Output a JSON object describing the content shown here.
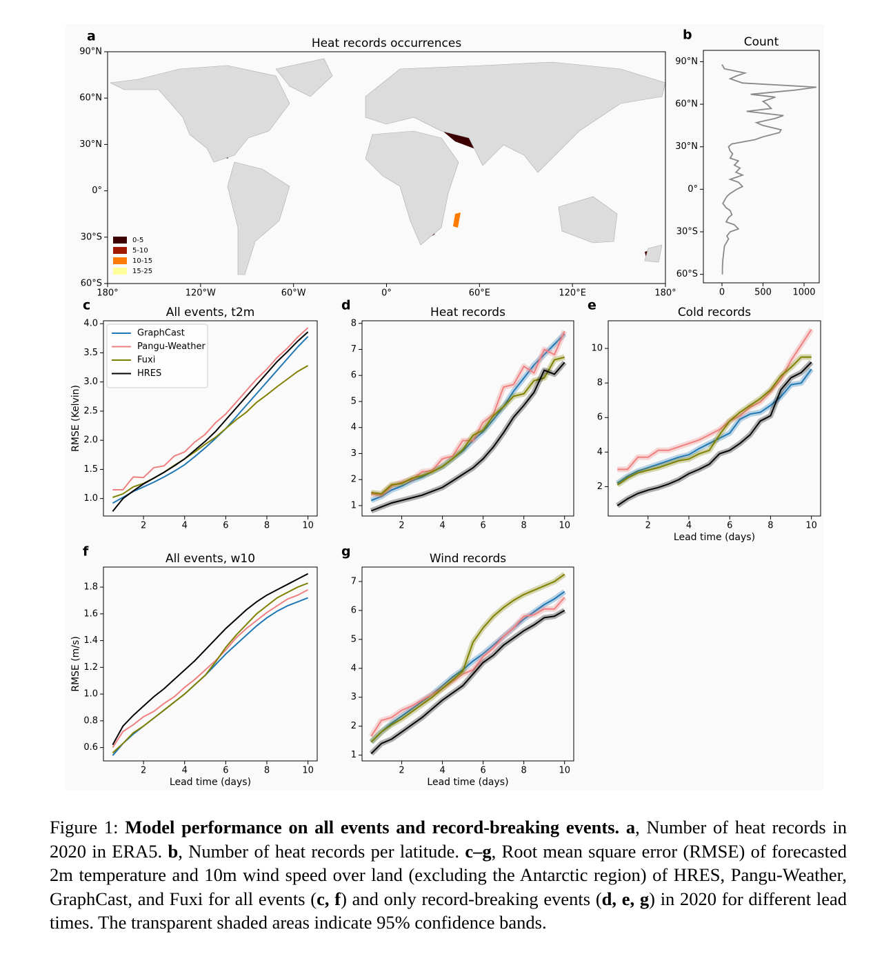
{
  "chart_data": [
    {
      "type": "map",
      "panel": "a",
      "title": "Heat records occurrences",
      "xlim": [
        -180,
        180
      ],
      "ylim": [
        -60,
        90
      ],
      "xticks": [
        {
          "value": -180,
          "label": "180°"
        },
        {
          "value": -120,
          "label": "120°W"
        },
        {
          "value": -60,
          "label": "60°W"
        },
        {
          "value": 0,
          "label": "0°"
        },
        {
          "value": 60,
          "label": "60°E"
        },
        {
          "value": 120,
          "label": "120°E"
        },
        {
          "value": 180,
          "label": "180°"
        }
      ],
      "yticks": [
        {
          "value": 90,
          "label": "90°N"
        },
        {
          "value": 60,
          "label": "60°N"
        },
        {
          "value": 30,
          "label": "30°N"
        },
        {
          "value": 0,
          "label": "0°"
        },
        {
          "value": -30,
          "label": "30°S"
        },
        {
          "value": -60,
          "label": "60°S"
        }
      ],
      "legend": "lower left",
      "legend_entries": [
        {
          "label": "0-5",
          "color": "#3d0000"
        },
        {
          "label": "5-10",
          "color": "#a01800"
        },
        {
          "label": "10-15",
          "color": "#ff7a00"
        },
        {
          "label": "15-25",
          "color": "#ffff99"
        }
      ]
    },
    {
      "type": "line",
      "orientation": "horizontal",
      "panel": "b",
      "title": "Count",
      "y": [
        88,
        85,
        82,
        80,
        78,
        75,
        72,
        70,
        67,
        65,
        62,
        60,
        57,
        55,
        52,
        50,
        47,
        45,
        42,
        40,
        37,
        35,
        32,
        30,
        27,
        25,
        22,
        20,
        17,
        15,
        12,
        10,
        7,
        5,
        2,
        0,
        -3,
        -5,
        -8,
        -10,
        -13,
        -15,
        -18,
        -20,
        -23,
        -25,
        -28,
        -30,
        -33,
        -35,
        -38,
        -40,
        -45,
        -50,
        -55,
        -60
      ],
      "values": [
        0,
        30,
        280,
        180,
        100,
        250,
        1150,
        900,
        350,
        650,
        500,
        550,
        600,
        300,
        750,
        650,
        420,
        500,
        720,
        700,
        500,
        400,
        120,
        80,
        100,
        130,
        100,
        200,
        150,
        220,
        170,
        250,
        100,
        200,
        250,
        180,
        100,
        60,
        30,
        10,
        50,
        100,
        120,
        80,
        50,
        150,
        200,
        100,
        60,
        80,
        50,
        30,
        20,
        10,
        5,
        5
      ],
      "color": "#888888",
      "xlim": [
        -227,
        1185
      ],
      "xticks": [
        0,
        500,
        1000
      ],
      "ylim": [
        -66,
        98
      ],
      "yticks": [
        {
          "value": 90,
          "label": "90°N"
        },
        {
          "value": 60,
          "label": "60°N"
        },
        {
          "value": 30,
          "label": "30°N"
        },
        {
          "value": 0,
          "label": "0°"
        },
        {
          "value": -30,
          "label": "30°S"
        },
        {
          "value": -60,
          "label": "60°S"
        }
      ]
    },
    {
      "type": "line",
      "panel": "c",
      "title": "All events, t2m",
      "ylabel": "RMSE (Kelvin)",
      "legend": "upper left",
      "bands": false,
      "x": [
        0.5,
        1,
        1.5,
        2,
        2.5,
        3,
        3.5,
        4,
        4.5,
        5,
        5.5,
        6,
        6.5,
        7,
        7.5,
        8,
        8.5,
        9,
        9.5,
        10
      ],
      "xlim": [
        0.05,
        10.45
      ],
      "xticks": [
        2,
        4,
        6,
        8,
        10
      ],
      "ylim": [
        0.7,
        4.05
      ],
      "yticks": [
        {
          "value": 1,
          "label": "1.0"
        },
        1.5,
        {
          "value": 2,
          "label": "2.0"
        },
        2.5,
        {
          "value": 3,
          "label": "3.0"
        },
        3.5,
        {
          "value": 4,
          "label": "4.0"
        }
      ],
      "series": [
        {
          "name": "GraphCast",
          "color": "#1f77b4",
          "values": [
            0.92,
            1.02,
            1.12,
            1.2,
            1.28,
            1.37,
            1.47,
            1.58,
            1.72,
            1.87,
            2.03,
            2.2,
            2.4,
            2.6,
            2.8,
            3.0,
            3.2,
            3.4,
            3.6,
            3.78
          ]
        },
        {
          "name": "Pangu-Weather",
          "color": "#f08080",
          "values": [
            1.15,
            1.15,
            1.37,
            1.36,
            1.53,
            1.56,
            1.73,
            1.8,
            1.97,
            2.1,
            2.3,
            2.45,
            2.65,
            2.85,
            3.05,
            3.22,
            3.42,
            3.58,
            3.77,
            3.93
          ]
        },
        {
          "name": "Fuxi",
          "color": "#808000",
          "values": [
            1.02,
            1.08,
            1.2,
            1.26,
            1.35,
            1.45,
            1.57,
            1.68,
            1.8,
            1.93,
            2.05,
            2.2,
            2.35,
            2.48,
            2.65,
            2.78,
            2.92,
            3.05,
            3.18,
            3.28
          ]
        },
        {
          "name": "HRES",
          "color": "#000000",
          "values": [
            0.78,
            1.0,
            1.13,
            1.25,
            1.35,
            1.45,
            1.56,
            1.68,
            1.83,
            1.98,
            2.15,
            2.35,
            2.55,
            2.75,
            2.95,
            3.15,
            3.35,
            3.52,
            3.7,
            3.86
          ]
        }
      ]
    },
    {
      "type": "line",
      "panel": "d",
      "title": "Heat records",
      "bands": true,
      "x": [
        0.5,
        1,
        1.5,
        2,
        2.5,
        3,
        3.5,
        4,
        4.5,
        5,
        5.5,
        6,
        6.5,
        7,
        7.5,
        8,
        8.5,
        9,
        9.5,
        10
      ],
      "xlim": [
        0.05,
        10.45
      ],
      "xticks": [
        2,
        4,
        6,
        8,
        10
      ],
      "ylim": [
        0.6,
        8.1
      ],
      "yticks": [
        1,
        2,
        3,
        4,
        5,
        6,
        7,
        8
      ],
      "series": [
        {
          "color": "#1f77b4",
          "values": [
            1.2,
            1.35,
            1.6,
            1.75,
            1.95,
            2.1,
            2.3,
            2.5,
            2.8,
            3.1,
            3.5,
            3.85,
            4.3,
            4.8,
            5.4,
            5.9,
            6.4,
            6.8,
            7.2,
            7.6
          ]
        },
        {
          "color": "#f08080",
          "values": [
            1.45,
            1.4,
            1.75,
            1.9,
            2.0,
            2.3,
            2.35,
            2.8,
            2.9,
            3.5,
            3.5,
            4.2,
            4.5,
            5.55,
            5.65,
            6.35,
            6.1,
            7.0,
            6.8,
            7.7
          ]
        },
        {
          "color": "#808000",
          "values": [
            1.5,
            1.45,
            1.8,
            1.85,
            2.05,
            2.15,
            2.3,
            2.5,
            2.8,
            3.15,
            3.7,
            3.9,
            4.45,
            4.8,
            5.2,
            5.3,
            5.8,
            5.9,
            6.6,
            6.7
          ]
        },
        {
          "color": "#000000",
          "values": [
            0.8,
            0.95,
            1.1,
            1.2,
            1.3,
            1.4,
            1.55,
            1.7,
            1.95,
            2.2,
            2.45,
            2.8,
            3.25,
            3.8,
            4.4,
            4.85,
            5.35,
            6.2,
            6.05,
            6.5
          ]
        }
      ]
    },
    {
      "type": "line",
      "panel": "e",
      "title": "Cold records",
      "xlabel": "Lead time (days)",
      "bands": true,
      "x": [
        0.5,
        1,
        1.5,
        2,
        2.5,
        3,
        3.5,
        4,
        4.5,
        5,
        5.5,
        6,
        6.5,
        7,
        7.5,
        8,
        8.5,
        9,
        9.5,
        10
      ],
      "xlim": [
        0.05,
        10.45
      ],
      "xticks": [
        2,
        4,
        6,
        8,
        10
      ],
      "ylim": [
        0.3,
        11.6
      ],
      "yticks": [
        2,
        4,
        6,
        8,
        10
      ],
      "series": [
        {
          "color": "#1f77b4",
          "values": [
            2.2,
            2.6,
            2.9,
            3.1,
            3.3,
            3.5,
            3.7,
            3.85,
            4.2,
            4.5,
            4.8,
            5.1,
            5.9,
            6.2,
            6.3,
            6.7,
            7.2,
            7.9,
            8.0,
            8.8
          ]
        },
        {
          "color": "#f08080",
          "values": [
            3.0,
            3.0,
            3.7,
            3.7,
            4.1,
            4.1,
            4.3,
            4.5,
            4.7,
            5.0,
            5.3,
            5.8,
            6.1,
            6.6,
            6.9,
            7.5,
            8.2,
            9.3,
            10.2,
            11.1
          ]
        },
        {
          "color": "#808000",
          "values": [
            2.1,
            2.5,
            2.8,
            2.95,
            3.1,
            3.3,
            3.5,
            3.6,
            3.9,
            4.1,
            5.0,
            5.8,
            6.3,
            6.7,
            7.1,
            7.6,
            8.4,
            8.9,
            9.5,
            9.5
          ]
        },
        {
          "color": "#000000",
          "values": [
            0.9,
            1.3,
            1.6,
            1.8,
            1.95,
            2.15,
            2.4,
            2.75,
            3.0,
            3.3,
            3.9,
            4.1,
            4.5,
            5.0,
            5.8,
            6.1,
            7.6,
            8.3,
            8.6,
            9.2
          ]
        }
      ]
    },
    {
      "type": "line",
      "panel": "f",
      "title": "All events, w10",
      "xlabel": "Lead time (days)",
      "ylabel": "RMSE (m/s)",
      "bands": false,
      "x": [
        0.5,
        1,
        1.5,
        2,
        2.5,
        3,
        3.5,
        4,
        4.5,
        5,
        5.5,
        6,
        6.5,
        7,
        7.5,
        8,
        8.5,
        9,
        9.5,
        10
      ],
      "xlim": [
        0.05,
        10.45
      ],
      "xticks": [
        2,
        4,
        6,
        8,
        10
      ],
      "ylim": [
        0.5,
        1.95
      ],
      "yticks": [
        0.6,
        0.8,
        {
          "value": 1,
          "label": "1.0"
        },
        1.2,
        1.4,
        1.6,
        1.8
      ],
      "series": [
        {
          "color": "#1f77b4",
          "values": [
            0.54,
            0.63,
            0.7,
            0.76,
            0.82,
            0.88,
            0.94,
            1.0,
            1.07,
            1.14,
            1.22,
            1.3,
            1.37,
            1.44,
            1.51,
            1.57,
            1.62,
            1.66,
            1.69,
            1.72
          ]
        },
        {
          "color": "#f08080",
          "values": [
            0.6,
            0.72,
            0.77,
            0.83,
            0.87,
            0.93,
            0.98,
            1.05,
            1.11,
            1.18,
            1.25,
            1.33,
            1.42,
            1.49,
            1.55,
            1.61,
            1.66,
            1.71,
            1.74,
            1.78
          ]
        },
        {
          "color": "#808000",
          "values": [
            0.56,
            0.63,
            0.71,
            0.76,
            0.82,
            0.88,
            0.94,
            1.0,
            1.07,
            1.14,
            1.24,
            1.35,
            1.44,
            1.52,
            1.6,
            1.66,
            1.72,
            1.76,
            1.8,
            1.83
          ]
        },
        {
          "color": "#000000",
          "values": [
            0.62,
            0.76,
            0.84,
            0.91,
            0.98,
            1.04,
            1.11,
            1.18,
            1.25,
            1.33,
            1.41,
            1.49,
            1.56,
            1.63,
            1.69,
            1.74,
            1.78,
            1.82,
            1.86,
            1.9
          ]
        }
      ]
    },
    {
      "type": "line",
      "panel": "g",
      "title": "Wind records",
      "xlabel": "Lead time (days)",
      "bands": true,
      "x": [
        0.5,
        1,
        1.5,
        2,
        2.5,
        3,
        3.5,
        4,
        4.5,
        5,
        5.5,
        6,
        6.5,
        7,
        7.5,
        8,
        8.5,
        9,
        9.5,
        10
      ],
      "xlim": [
        0.05,
        10.45
      ],
      "xticks": [
        2,
        4,
        6,
        8,
        10
      ],
      "ylim": [
        0.8,
        7.5
      ],
      "yticks": [
        1,
        2,
        3,
        4,
        5,
        6,
        7
      ],
      "series": [
        {
          "color": "#1f77b4",
          "values": [
            1.45,
            1.8,
            2.1,
            2.35,
            2.6,
            2.85,
            3.1,
            3.4,
            3.7,
            3.95,
            4.25,
            4.5,
            4.8,
            5.1,
            5.4,
            5.7,
            5.95,
            6.2,
            6.4,
            6.65
          ]
        },
        {
          "color": "#f08080",
          "values": [
            1.65,
            2.2,
            2.3,
            2.55,
            2.7,
            2.9,
            3.1,
            3.3,
            3.55,
            3.8,
            3.95,
            4.4,
            4.7,
            5.1,
            5.4,
            5.8,
            5.85,
            6.05,
            6.05,
            6.45
          ]
        },
        {
          "color": "#808000",
          "values": [
            1.45,
            1.8,
            2.05,
            2.25,
            2.5,
            2.75,
            3.0,
            3.3,
            3.6,
            3.9,
            4.9,
            5.4,
            5.8,
            6.1,
            6.35,
            6.55,
            6.7,
            6.85,
            7.0,
            7.25
          ]
        },
        {
          "color": "#000000",
          "values": [
            1.05,
            1.4,
            1.55,
            1.8,
            2.05,
            2.3,
            2.6,
            2.9,
            3.15,
            3.4,
            3.8,
            4.2,
            4.45,
            4.8,
            5.05,
            5.3,
            5.5,
            5.75,
            5.8,
            6.0
          ]
        }
      ]
    }
  ],
  "caption": {
    "segments": [
      {
        "text": "Figure 1: "
      },
      {
        "text": "Model performance on all events and record-breaking events. a",
        "bold": true
      },
      {
        "text": ", Number of heat records in 2020 in ERA5. "
      },
      {
        "text": "b",
        "bold": true
      },
      {
        "text": ", Number of heat records per latitude. "
      },
      {
        "text": "c–g",
        "bold": true
      },
      {
        "text": ", Root mean square error (RMSE) of forecasted 2m temperature and 10m wind speed over land (excluding the Antarctic region) of HRES, Pangu-Weather, GraphCast, and Fuxi for all events ("
      },
      {
        "text": "c, f",
        "bold": true
      },
      {
        "text": ") and only record-breaking events ("
      },
      {
        "text": "d, e, g",
        "bold": true
      },
      {
        "text": ") in 2020 for different lead times. The transparent shaded areas indicate 95% confidence bands."
      }
    ]
  }
}
